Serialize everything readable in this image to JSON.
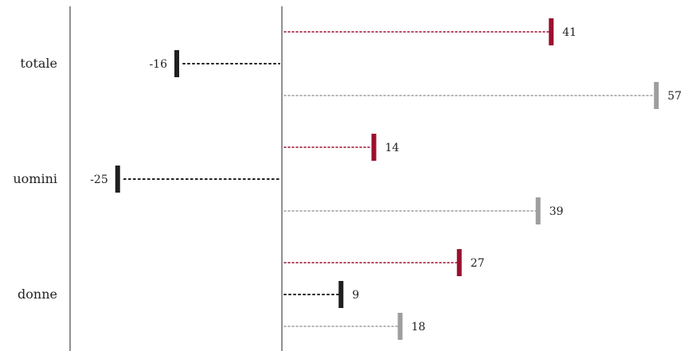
{
  "chart_data": {
    "type": "bar",
    "title": "",
    "xlabel": "",
    "ylabel": "",
    "categories": [
      "totale",
      "uomini",
      "donne"
    ],
    "series": [
      {
        "color": "#9b0f2e",
        "values": [
          41,
          14,
          27
        ]
      },
      {
        "color": "#1f1f1f",
        "values": [
          -16,
          -25,
          9
        ]
      },
      {
        "color": "#9e9e9e",
        "values": [
          57,
          39,
          18
        ]
      }
    ],
    "value_labels": {
      "totale": [
        "41",
        "-16",
        "57"
      ],
      "uomini": [
        "14",
        "-25",
        "39"
      ],
      "donne": [
        "27",
        "9",
        "18"
      ]
    },
    "xlim": [
      -30,
      57
    ],
    "grid": false,
    "legend": "none",
    "style": "dot-leader bars with end markers"
  }
}
